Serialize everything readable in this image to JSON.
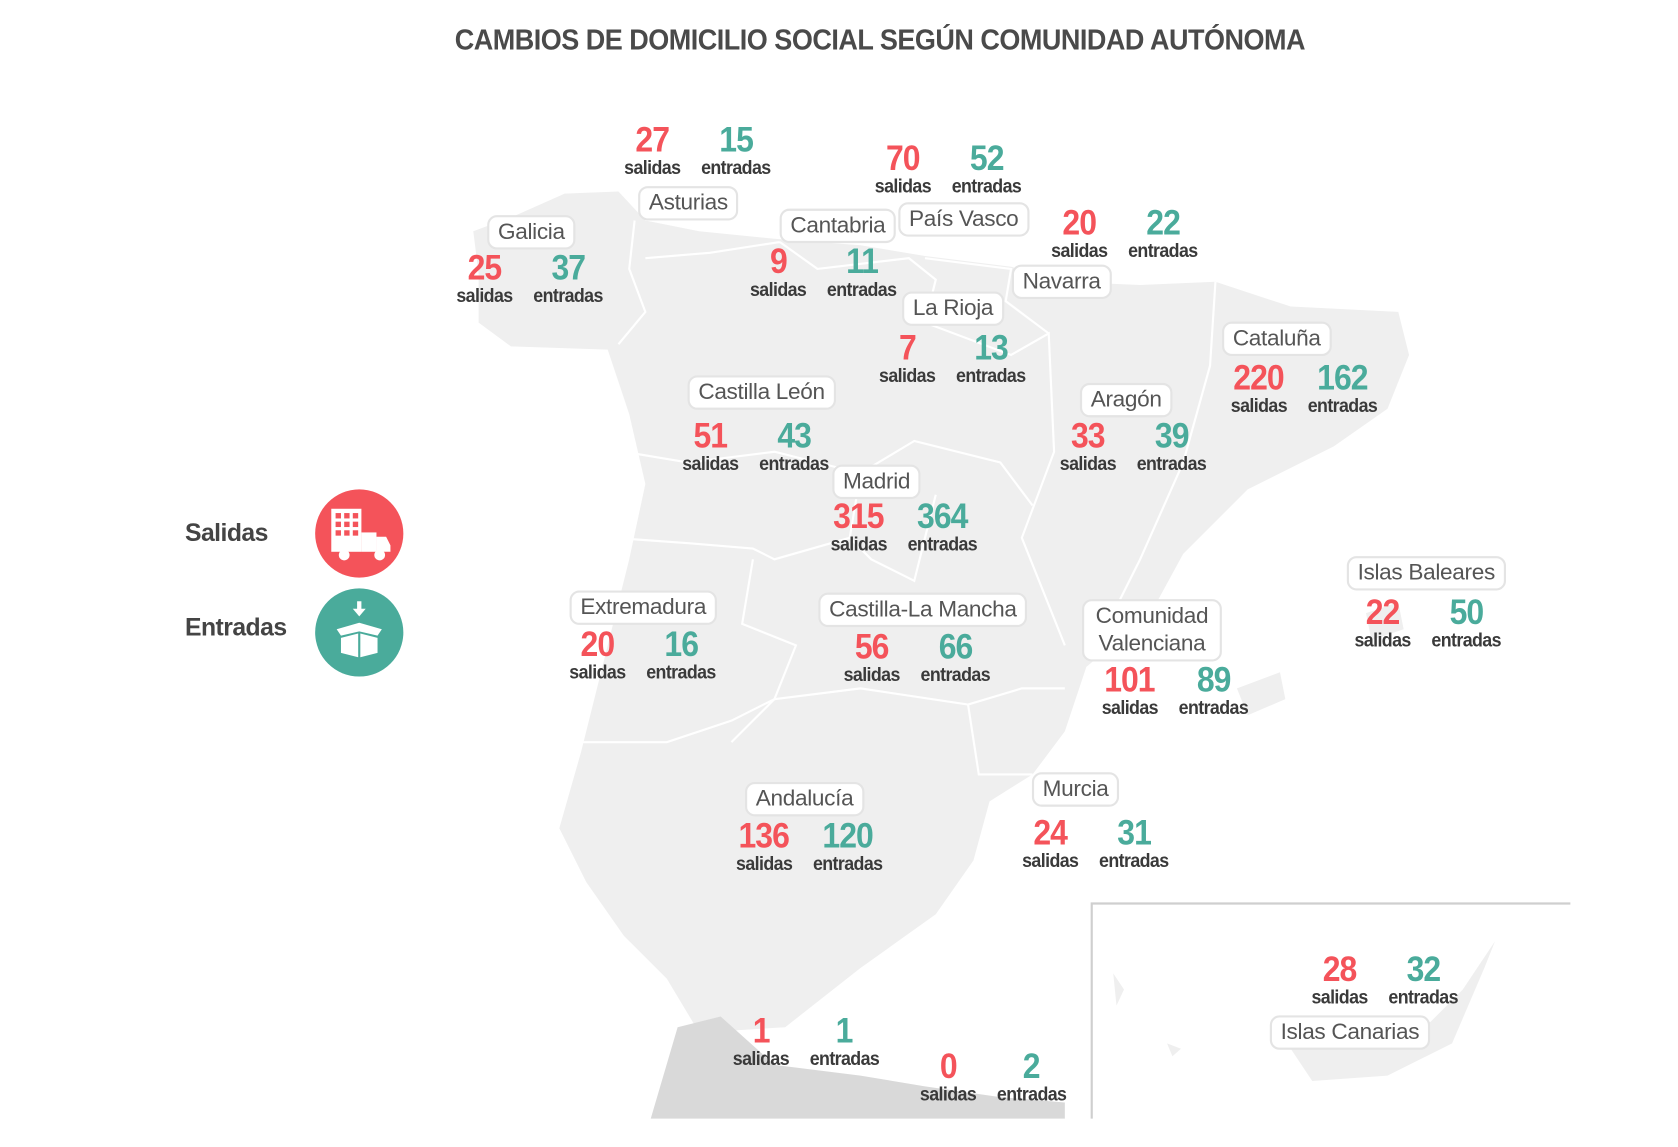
{
  "title": "CAMBIOS DE DOMICILIO SOCIAL SEGÚN COMUNIDAD AUTÓNOMA",
  "colors": {
    "salidas": "#f4535a",
    "entradas": "#4aab9b",
    "map_fill": "#efefef",
    "border": "#ffffff"
  },
  "legend": [
    {
      "label": "Salidas",
      "icon": "building-truck-icon"
    },
    {
      "label": "Entradas",
      "icon": "open-box-arrow-icon"
    }
  ],
  "words": {
    "salidas": "salidas",
    "entradas": "entradas"
  },
  "regions": [
    {
      "name": "Asturias",
      "salidas": 27,
      "entradas": 15
    },
    {
      "name": "País Vasco",
      "salidas": 70,
      "entradas": 52
    },
    {
      "name": "Navarra",
      "salidas": 20,
      "entradas": 22
    },
    {
      "name": "Galicia",
      "salidas": 25,
      "entradas": 37
    },
    {
      "name": "Cantabria",
      "salidas": 9,
      "entradas": 11
    },
    {
      "name": "La Rioja",
      "salidas": 7,
      "entradas": 13
    },
    {
      "name": "Cataluña",
      "salidas": 220,
      "entradas": 162
    },
    {
      "name": "Castilla León",
      "salidas": 51,
      "entradas": 43
    },
    {
      "name": "Aragón",
      "salidas": 33,
      "entradas": 39
    },
    {
      "name": "Madrid",
      "salidas": 315,
      "entradas": 364
    },
    {
      "name": "Islas Baleares",
      "salidas": 22,
      "entradas": 50
    },
    {
      "name": "Extremadura",
      "salidas": 20,
      "entradas": 16
    },
    {
      "name": "Castilla-La Mancha",
      "salidas": 56,
      "entradas": 66
    },
    {
      "name": "Comunidad Valenciana",
      "salidas": 101,
      "entradas": 89
    },
    {
      "name": "Murcia",
      "salidas": 24,
      "entradas": 31
    },
    {
      "name": "Andalucía",
      "salidas": 136,
      "entradas": 120
    },
    {
      "name": "Islas Canarias",
      "salidas": 28,
      "entradas": 32
    },
    {
      "name": "",
      "salidas": 1,
      "entradas": 1
    },
    {
      "name": "",
      "salidas": 0,
      "entradas": 2
    }
  ]
}
